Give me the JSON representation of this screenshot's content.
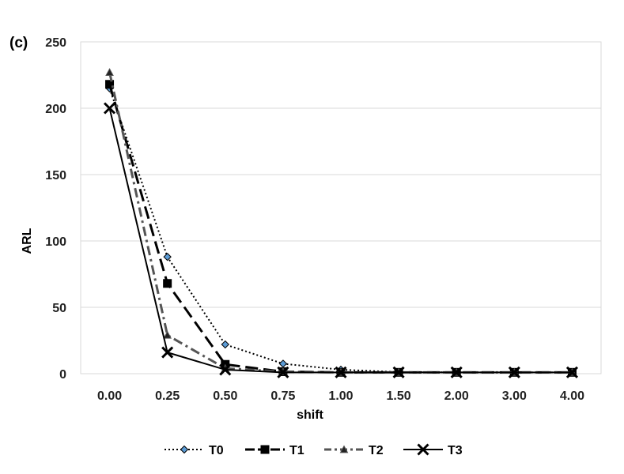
{
  "chart_data": {
    "type": "line",
    "panel_label": "(c)",
    "title": "",
    "xlabel": "shift",
    "ylabel": "ARL",
    "categories": [
      "0.00",
      "0.25",
      "0.50",
      "0.75",
      "1.00",
      "1.50",
      "2.00",
      "3.00",
      "4.00"
    ],
    "ylim": [
      0,
      250
    ],
    "yticks": [
      0,
      50,
      100,
      150,
      200,
      250
    ],
    "grid": "horizontal",
    "legend_position": "bottom",
    "series": [
      {
        "name": "T0",
        "values": [
          215,
          88,
          22,
          7.5,
          3,
          1.2,
          1,
          1,
          1
        ],
        "line": "dotted",
        "marker": "diamond",
        "color": "#000000",
        "marker_fill": "#5b9bd5"
      },
      {
        "name": "T1",
        "values": [
          218,
          68,
          7,
          1.5,
          1,
          1,
          1,
          1,
          1
        ],
        "line": "long-dash",
        "marker": "square",
        "color": "#000000",
        "marker_fill": "#000000"
      },
      {
        "name": "T2",
        "values": [
          227,
          29,
          4,
          1.5,
          1,
          1,
          1,
          1,
          1
        ],
        "line": "dash-dot",
        "marker": "triangle",
        "color": "#555555",
        "marker_fill": "#222222"
      },
      {
        "name": "T3",
        "values": [
          200,
          16,
          3,
          1,
          1,
          1,
          1,
          1,
          1
        ],
        "line": "solid",
        "marker": "x",
        "color": "#000000",
        "marker_fill": "#000000"
      }
    ]
  }
}
